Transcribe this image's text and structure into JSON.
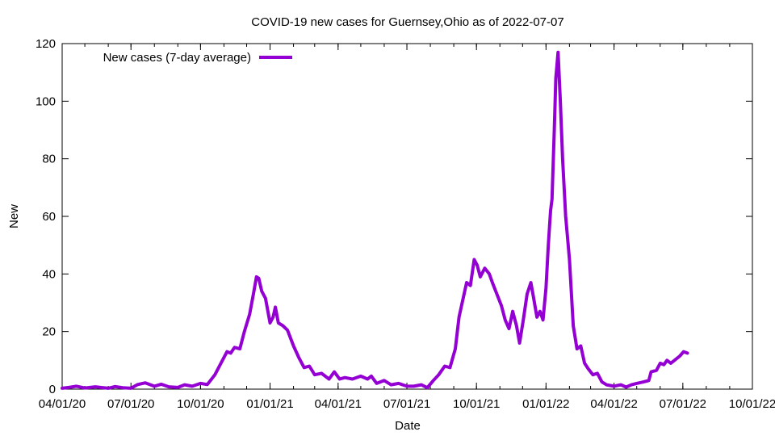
{
  "chart_data": {
    "type": "line",
    "title": "COVID-19 new cases for Guernsey,Ohio as of 2022-07-07",
    "xlabel": "Date",
    "ylabel": "New",
    "xlim": [
      "2020-04-01",
      "2022-10-01"
    ],
    "ylim": [
      0,
      120
    ],
    "x_ticks": [
      "04/01/20",
      "07/01/20",
      "10/01/20",
      "01/01/21",
      "04/01/21",
      "07/01/21",
      "10/01/21",
      "01/01/22",
      "04/01/22",
      "07/01/22",
      "10/01/22"
    ],
    "y_ticks": [
      0,
      20,
      40,
      60,
      80,
      100,
      120
    ],
    "grid": false,
    "legend_position": "top-left",
    "series": [
      {
        "name": "New cases (7-day average)",
        "color": "#9400d3",
        "points": [
          [
            "2020-04-01",
            0.3
          ],
          [
            "2020-04-10",
            0.6
          ],
          [
            "2020-04-20",
            1.0
          ],
          [
            "2020-05-01",
            0.4
          ],
          [
            "2020-05-15",
            0.8
          ],
          [
            "2020-06-01",
            0.3
          ],
          [
            "2020-06-10",
            0.9
          ],
          [
            "2020-06-20",
            0.5
          ],
          [
            "2020-07-01",
            0.3
          ],
          [
            "2020-07-10",
            1.6
          ],
          [
            "2020-07-20",
            2.2
          ],
          [
            "2020-08-01",
            1.0
          ],
          [
            "2020-08-10",
            1.7
          ],
          [
            "2020-08-20",
            0.8
          ],
          [
            "2020-09-01",
            0.6
          ],
          [
            "2020-09-10",
            1.5
          ],
          [
            "2020-09-20",
            1.0
          ],
          [
            "2020-10-01",
            2.0
          ],
          [
            "2020-10-10",
            1.6
          ],
          [
            "2020-10-20",
            5.0
          ],
          [
            "2020-11-01",
            11.0
          ],
          [
            "2020-11-05",
            13.0
          ],
          [
            "2020-11-10",
            12.5
          ],
          [
            "2020-11-15",
            14.5
          ],
          [
            "2020-11-22",
            14.0
          ],
          [
            "2020-11-28",
            20.0
          ],
          [
            "2020-12-05",
            26.0
          ],
          [
            "2020-12-10",
            33.0
          ],
          [
            "2020-12-14",
            39.0
          ],
          [
            "2020-12-17",
            38.5
          ],
          [
            "2020-12-21",
            34.0
          ],
          [
            "2020-12-26",
            31.5
          ],
          [
            "2021-01-01",
            23.0
          ],
          [
            "2021-01-05",
            25.0
          ],
          [
            "2021-01-08",
            28.5
          ],
          [
            "2021-01-12",
            23.0
          ],
          [
            "2021-01-18",
            22.0
          ],
          [
            "2021-01-24",
            20.5
          ],
          [
            "2021-02-01",
            15.0
          ],
          [
            "2021-02-08",
            11.0
          ],
          [
            "2021-02-15",
            7.5
          ],
          [
            "2021-02-22",
            8.0
          ],
          [
            "2021-03-01",
            5.0
          ],
          [
            "2021-03-10",
            5.5
          ],
          [
            "2021-03-20",
            3.5
          ],
          [
            "2021-03-27",
            6.0
          ],
          [
            "2021-04-03",
            3.5
          ],
          [
            "2021-04-10",
            4.0
          ],
          [
            "2021-04-20",
            3.5
          ],
          [
            "2021-05-01",
            4.5
          ],
          [
            "2021-05-10",
            3.5
          ],
          [
            "2021-05-15",
            4.5
          ],
          [
            "2021-05-22",
            2.0
          ],
          [
            "2021-06-01",
            3.0
          ],
          [
            "2021-06-10",
            1.5
          ],
          [
            "2021-06-20",
            2.0
          ],
          [
            "2021-07-01",
            1.0
          ],
          [
            "2021-07-10",
            1.0
          ],
          [
            "2021-07-20",
            1.5
          ],
          [
            "2021-07-28",
            0.5
          ],
          [
            "2021-08-05",
            3.0
          ],
          [
            "2021-08-12",
            5.0
          ],
          [
            "2021-08-20",
            8.0
          ],
          [
            "2021-08-27",
            7.5
          ],
          [
            "2021-09-03",
            14.0
          ],
          [
            "2021-09-08",
            25.0
          ],
          [
            "2021-09-13",
            31.0
          ],
          [
            "2021-09-18",
            37.0
          ],
          [
            "2021-09-23",
            36.0
          ],
          [
            "2021-09-28",
            45.0
          ],
          [
            "2021-10-02",
            43.0
          ],
          [
            "2021-10-06",
            39.0
          ],
          [
            "2021-10-12",
            42.0
          ],
          [
            "2021-10-18",
            40.0
          ],
          [
            "2021-10-22",
            37.0
          ],
          [
            "2021-10-28",
            33.0
          ],
          [
            "2021-11-03",
            29.0
          ],
          [
            "2021-11-08",
            24.0
          ],
          [
            "2021-11-13",
            21.0
          ],
          [
            "2021-11-18",
            27.0
          ],
          [
            "2021-11-23",
            22.0
          ],
          [
            "2021-11-27",
            16.0
          ],
          [
            "2021-12-02",
            24.0
          ],
          [
            "2021-12-07",
            33.0
          ],
          [
            "2021-12-12",
            37.0
          ],
          [
            "2021-12-16",
            31.0
          ],
          [
            "2021-12-20",
            25.0
          ],
          [
            "2021-12-24",
            27.0
          ],
          [
            "2021-12-28",
            24.0
          ],
          [
            "2022-01-01",
            35.0
          ],
          [
            "2022-01-04",
            50.0
          ],
          [
            "2022-01-07",
            62.0
          ],
          [
            "2022-01-09",
            66.0
          ],
          [
            "2022-01-12",
            90.0
          ],
          [
            "2022-01-14",
            108.0
          ],
          [
            "2022-01-17",
            117.0
          ],
          [
            "2022-01-20",
            100.0
          ],
          [
            "2022-01-23",
            80.0
          ],
          [
            "2022-01-27",
            60.0
          ],
          [
            "2022-02-01",
            45.0
          ],
          [
            "2022-02-06",
            22.0
          ],
          [
            "2022-02-11",
            14.0
          ],
          [
            "2022-02-16",
            15.0
          ],
          [
            "2022-02-21",
            9.0
          ],
          [
            "2022-02-26",
            7.0
          ],
          [
            "2022-03-04",
            5.0
          ],
          [
            "2022-03-10",
            5.5
          ],
          [
            "2022-03-16",
            2.5
          ],
          [
            "2022-03-22",
            1.5
          ],
          [
            "2022-04-01",
            1.0
          ],
          [
            "2022-04-10",
            1.5
          ],
          [
            "2022-04-17",
            0.7
          ],
          [
            "2022-04-24",
            1.5
          ],
          [
            "2022-05-01",
            2.0
          ],
          [
            "2022-05-10",
            2.5
          ],
          [
            "2022-05-17",
            3.0
          ],
          [
            "2022-05-20",
            6.0
          ],
          [
            "2022-05-27",
            6.5
          ],
          [
            "2022-06-01",
            9.0
          ],
          [
            "2022-06-06",
            8.5
          ],
          [
            "2022-06-10",
            10.0
          ],
          [
            "2022-06-15",
            9.0
          ],
          [
            "2022-06-20",
            10.0
          ],
          [
            "2022-06-27",
            11.5
          ],
          [
            "2022-07-02",
            13.0
          ],
          [
            "2022-07-07",
            12.5
          ]
        ]
      }
    ]
  }
}
